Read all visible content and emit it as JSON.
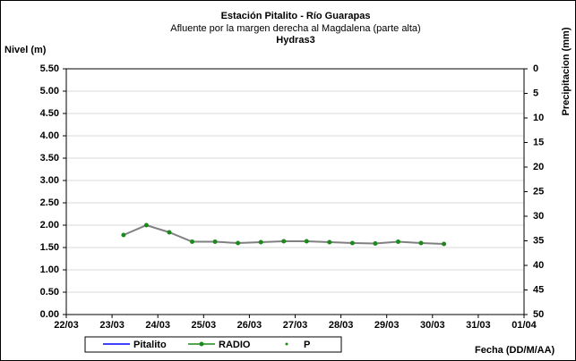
{
  "chart_data": {
    "type": "line",
    "title": "Estación Pitalito  - Río Guarapas",
    "subtitle": "Afluente por la margen derecha al Magdalena (parte alta)",
    "source": "Hydras3",
    "y_label": "Nivel (m)",
    "y2_label": "Precipitacion (mm)",
    "x_label": "Fecha (DD/M/AA)",
    "x": [
      1.25,
      1.75,
      2.25,
      2.75,
      3.25,
      3.75,
      4.25,
      4.75,
      5.25,
      5.75,
      6.25,
      6.75,
      7.25,
      7.75,
      8.25
    ],
    "xlim": [
      0,
      10
    ],
    "xticks": [
      {
        "value": 0,
        "label": "22/03"
      },
      {
        "value": 1,
        "label": "23/03"
      },
      {
        "value": 2,
        "label": "24/03"
      },
      {
        "value": 3,
        "label": "25/03"
      },
      {
        "value": 4,
        "label": "26/03"
      },
      {
        "value": 5,
        "label": "27/03"
      },
      {
        "value": 6,
        "label": "28/03"
      },
      {
        "value": 7,
        "label": "29/03"
      },
      {
        "value": 8,
        "label": "30/03"
      },
      {
        "value": 9,
        "label": "31/03"
      },
      {
        "value": 10,
        "label": "01/04"
      }
    ],
    "ylim": [
      0,
      5.5
    ],
    "yticks": [
      {
        "value": 0,
        "label": "0.00"
      },
      {
        "value": 0.5,
        "label": "0.50"
      },
      {
        "value": 1,
        "label": "1.00"
      },
      {
        "value": 1.5,
        "label": "1.50"
      },
      {
        "value": 2,
        "label": "2.00"
      },
      {
        "value": 2.5,
        "label": "2.50"
      },
      {
        "value": 3,
        "label": "3.00"
      },
      {
        "value": 3.5,
        "label": "3.50"
      },
      {
        "value": 4,
        "label": "4.00"
      },
      {
        "value": 4.5,
        "label": "4.50"
      },
      {
        "value": 5,
        "label": "5.00"
      },
      {
        "value": 5.5,
        "label": "5.50"
      }
    ],
    "y2lim": [
      50,
      0
    ],
    "y2ticks": [
      0,
      5,
      10,
      15,
      20,
      25,
      30,
      35,
      40,
      45,
      50
    ],
    "grid": true,
    "series": [
      {
        "name": "Pitalito",
        "color": "#0000ff",
        "marker": false,
        "values": [
          null,
          null,
          null,
          null,
          null,
          null,
          null,
          null,
          null,
          null,
          null,
          null,
          null,
          null,
          null
        ]
      },
      {
        "name": "RADIO",
        "color": "#808080",
        "marker_color": "#1a8a1a",
        "marker": true,
        "values": [
          1.78,
          2.0,
          1.84,
          1.63,
          1.63,
          1.6,
          1.62,
          1.64,
          1.64,
          1.62,
          1.6,
          1.59,
          1.63,
          1.6,
          1.58
        ]
      },
      {
        "name": "P",
        "color": "#1a8a1a",
        "marker": true,
        "line": false,
        "axis": "y2",
        "values": [
          null,
          null,
          null,
          null,
          null,
          null,
          null,
          null,
          null,
          null,
          null,
          null,
          null,
          null,
          null
        ]
      }
    ]
  }
}
